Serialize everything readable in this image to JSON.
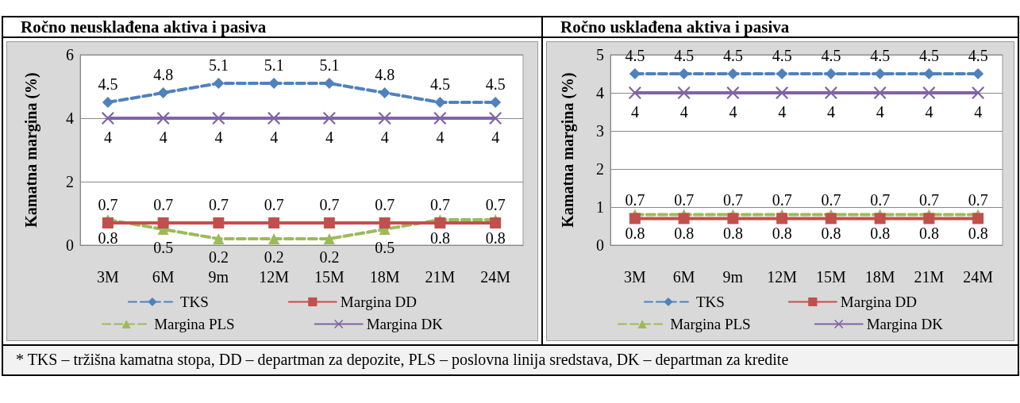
{
  "chart_data": [
    {
      "type": "line",
      "title": "Ročno neusklađena aktiva i pasiva",
      "ylabel": "Kamatna margina (%)",
      "categories": [
        "3M",
        "6M",
        "9m",
        "12M",
        "15M",
        "18M",
        "21M",
        "24M"
      ],
      "series": [
        {
          "name": "TKS",
          "color": "#4f81bd",
          "marker": "diamond",
          "line_style": "dashed",
          "values": [
            4.5,
            4.8,
            5.1,
            5.1,
            5.1,
            4.8,
            4.5,
            4.5
          ]
        },
        {
          "name": "Margina DD",
          "color": "#c0504d",
          "marker": "square",
          "line_style": "solid",
          "values": [
            0.7,
            0.7,
            0.7,
            0.7,
            0.7,
            0.7,
            0.7,
            0.7
          ]
        },
        {
          "name": "Margina PLS",
          "color": "#9bbb59",
          "marker": "triangle",
          "line_style": "dashed",
          "values": [
            0.8,
            0.5,
            0.2,
            0.2,
            0.2,
            0.5,
            0.8,
            0.8
          ]
        },
        {
          "name": "Margina DK",
          "color": "#8064a2",
          "marker": "cross",
          "line_style": "solid",
          "values": [
            4,
            4,
            4,
            4,
            4,
            4,
            4,
            4
          ]
        }
      ],
      "ylim": [
        0,
        6
      ],
      "yticks": [
        0,
        2,
        4,
        6
      ],
      "grid": "y",
      "legend": "bottom",
      "data_labels": true,
      "annotations": [
        "* TKS – tržišna kamatna stopa, DD – departman za depozite, PLS – poslovna linija sredstava, DK – departman za kredite"
      ]
    },
    {
      "type": "line",
      "title": "Ročno usklađena aktiva i pasiva",
      "ylabel": "Kamatna margina (%)",
      "categories": [
        "3M",
        "6M",
        "9m",
        "12M",
        "15M",
        "18M",
        "21M",
        "24M"
      ],
      "series": [
        {
          "name": "TKS",
          "color": "#4f81bd",
          "marker": "diamond",
          "line_style": "dashed",
          "values": [
            4.5,
            4.5,
            4.5,
            4.5,
            4.5,
            4.5,
            4.5,
            4.5
          ]
        },
        {
          "name": "Margina DD",
          "color": "#c0504d",
          "marker": "square",
          "line_style": "solid",
          "values": [
            0.7,
            0.7,
            0.7,
            0.7,
            0.7,
            0.7,
            0.7,
            0.7
          ]
        },
        {
          "name": "Margina PLS",
          "color": "#9bbb59",
          "marker": "triangle",
          "line_style": "dashed",
          "values": [
            0.8,
            0.8,
            0.8,
            0.8,
            0.8,
            0.8,
            0.8,
            0.8
          ]
        },
        {
          "name": "Margina DK",
          "color": "#8064a2",
          "marker": "cross",
          "line_style": "solid",
          "values": [
            4,
            4,
            4,
            4,
            4,
            4,
            4,
            4
          ]
        }
      ],
      "ylim": [
        0,
        5
      ],
      "yticks": [
        0,
        1,
        2,
        3,
        4,
        5
      ],
      "grid": "y",
      "legend": "bottom",
      "data_labels": true
    }
  ]
}
